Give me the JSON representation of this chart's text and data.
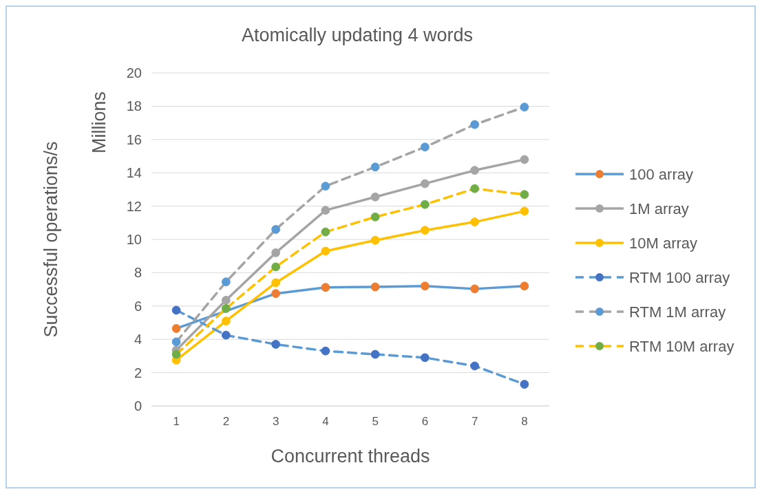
{
  "chart_data": {
    "type": "line",
    "title": "Atomically updating 4 words",
    "xlabel": "Concurrent threads",
    "ylabel": "Successful operations/s",
    "annotations": [
      "Millions"
    ],
    "categories": [
      "1",
      "2",
      "3",
      "4",
      "5",
      "6",
      "7",
      "8"
    ],
    "series": [
      {
        "name": "100 array",
        "color": "#5b9bd5",
        "colors": [
          "#ed7d31",
          null,
          "#ed7d31",
          "#ed7d31",
          "#ed7d31",
          "#ed7d31",
          "#ed7d31",
          "#ed7d31"
        ],
        "line_style": "solid",
        "values": [
          4.65,
          null,
          6.75,
          7.12,
          7.15,
          7.2,
          7.03,
          7.2
        ]
      },
      {
        "name": "1M array",
        "color": "#a5a5a5",
        "colors": [
          "#a5a5a5",
          "#a5a5a5",
          "#a5a5a5",
          "#a5a5a5",
          "#a5a5a5",
          "#a5a5a5",
          "#a5a5a5",
          "#a5a5a5"
        ],
        "line_style": "solid",
        "values": [
          3.35,
          6.35,
          9.2,
          11.75,
          12.55,
          13.35,
          14.15,
          14.8
        ]
      },
      {
        "name": "10M array",
        "color": "#ffc000",
        "colors": [
          "#ffc000",
          "#ffc000",
          "#ffc000",
          "#ffc000",
          "#ffc000",
          "#ffc000",
          "#ffc000",
          "#ffc000"
        ],
        "line_style": "solid",
        "values": [
          2.75,
          5.1,
          7.4,
          9.3,
          9.95,
          10.55,
          11.05,
          11.7
        ]
      },
      {
        "name": "RTM 100 array",
        "color": "#5b9bd5",
        "colors": [
          "#4472c4",
          "#4472c4",
          "#4472c4",
          "#4472c4",
          "#4472c4",
          "#4472c4",
          "#4472c4",
          "#4472c4"
        ],
        "line_style": "dashed",
        "values": [
          5.75,
          4.25,
          3.7,
          3.3,
          3.1,
          2.9,
          2.4,
          1.3
        ]
      },
      {
        "name": "RTM 1M array",
        "color": "#a5a5a5",
        "colors": [
          "#5b9bd5",
          "#5b9bd5",
          "#5b9bd5",
          "#5b9bd5",
          "#5b9bd5",
          "#5b9bd5",
          "#5b9bd5",
          "#5b9bd5"
        ],
        "line_style": "dashed",
        "values": [
          3.85,
          7.45,
          10.6,
          13.2,
          14.35,
          15.55,
          16.9,
          17.95
        ]
      },
      {
        "name": "RTM 10M array",
        "color": "#ffc000",
        "colors": [
          "#70ad47",
          "#70ad47",
          "#70ad47",
          "#70ad47",
          "#70ad47",
          "#70ad47",
          "#70ad47",
          "#70ad47"
        ],
        "line_style": "dashed",
        "values": [
          3.1,
          5.85,
          8.35,
          10.45,
          11.35,
          12.1,
          13.05,
          12.7
        ]
      }
    ],
    "ylim": [
      0,
      20
    ],
    "yticks": [
      0,
      2,
      4,
      6,
      8,
      10,
      12,
      14,
      16,
      18,
      20
    ],
    "grid": "y",
    "legend": "right",
    "marker": "circle"
  }
}
